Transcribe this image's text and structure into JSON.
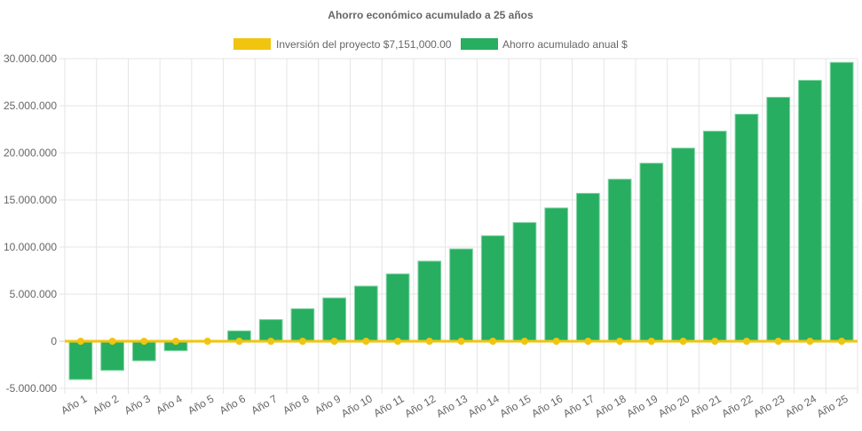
{
  "chart_data": {
    "type": "bar",
    "title": "Ahorro económico acumulado a 25 años",
    "legend_position": "top",
    "categories": [
      "Año 1",
      "Año 2",
      "Año 3",
      "Año 4",
      "Año 5",
      "Año 6",
      "Año 7",
      "Año 8",
      "Año 9",
      "Año 10",
      "Año 11",
      "Año 12",
      "Año 13",
      "Año 14",
      "Año 15",
      "Año 16",
      "Año 17",
      "Año 18",
      "Año 19",
      "Año 20",
      "Año 21",
      "Año 22",
      "Año 23",
      "Año 24",
      "Año 25"
    ],
    "series": [
      {
        "name": "Inversión del proyecto $7,151,000.00",
        "type": "line",
        "color": "#f1c40f",
        "values": [
          0,
          0,
          0,
          0,
          0,
          0,
          0,
          0,
          0,
          0,
          0,
          0,
          0,
          0,
          0,
          0,
          0,
          0,
          0,
          0,
          0,
          0,
          0,
          0,
          0
        ]
      },
      {
        "name": "Ahorro acumulado anual $",
        "type": "bar",
        "color": "#27ae60",
        "values": [
          -4060000,
          -3090000,
          -2070000,
          -1000000,
          0,
          1100000,
          2300000,
          3450000,
          4600000,
          5850000,
          7150000,
          8500000,
          9800000,
          11200000,
          12600000,
          14150000,
          15700000,
          17200000,
          18900000,
          20500000,
          22300000,
          24100000,
          25900000,
          27700000,
          29600000
        ]
      }
    ],
    "yticks": [
      "30.000.000",
      "25.000.000",
      "20.000.000",
      "15.000.000",
      "10.000.000",
      "5.000.000",
      "0",
      "-5.000.000"
    ],
    "ytick_values": [
      30000000,
      25000000,
      20000000,
      15000000,
      10000000,
      5000000,
      0,
      -5000000
    ],
    "ylim": [
      -5000000,
      30000000
    ],
    "grid": true,
    "xlabel": "",
    "ylabel": ""
  }
}
